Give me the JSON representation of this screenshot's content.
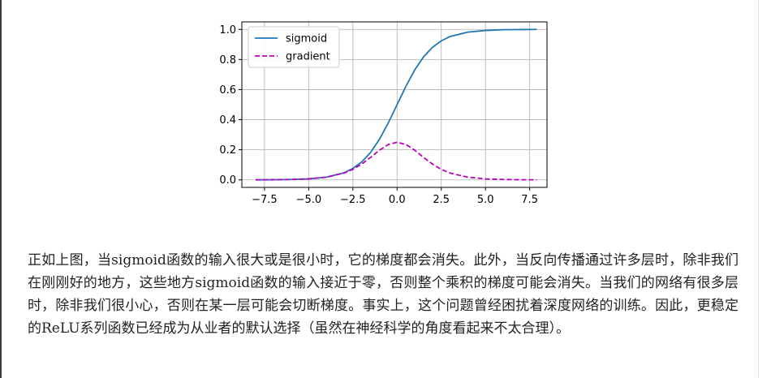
{
  "chart_data": {
    "type": "line",
    "title": "",
    "xlabel": "",
    "ylabel": "",
    "xlim": [
      -8.78,
      8.48
    ],
    "ylim": [
      -0.05,
      1.05
    ],
    "xticks": [
      -7.5,
      -5.0,
      -2.5,
      0.0,
      2.5,
      5.0,
      7.5
    ],
    "xtick_labels": [
      "−7.5",
      "−5.0",
      "−2.5",
      "0.0",
      "2.5",
      "5.0",
      "7.5"
    ],
    "yticks": [
      0.0,
      0.2,
      0.4,
      0.6,
      0.8,
      1.0
    ],
    "ytick_labels": [
      "0.0",
      "0.2",
      "0.4",
      "0.6",
      "0.8",
      "1.0"
    ],
    "grid": true,
    "legend": "top-left",
    "series": [
      {
        "name": "sigmoid",
        "style": "solid",
        "color": "#1f77b4",
        "x": [
          -8.0,
          -7.0,
          -6.0,
          -5.0,
          -4.0,
          -3.0,
          -2.5,
          -2.0,
          -1.5,
          -1.0,
          -0.5,
          0.0,
          0.5,
          1.0,
          1.5,
          2.0,
          2.5,
          3.0,
          4.0,
          5.0,
          6.0,
          7.0,
          7.9
        ],
        "y": [
          0.0003,
          0.0009,
          0.0025,
          0.0067,
          0.018,
          0.047,
          0.076,
          0.119,
          0.182,
          0.269,
          0.378,
          0.5,
          0.622,
          0.731,
          0.818,
          0.881,
          0.924,
          0.953,
          0.982,
          0.993,
          0.998,
          0.999,
          1.0
        ]
      },
      {
        "name": "gradient",
        "style": "dashed",
        "color": "#bf00bf",
        "x": [
          -8.0,
          -7.0,
          -6.0,
          -5.0,
          -4.0,
          -3.0,
          -2.5,
          -2.0,
          -1.5,
          -1.0,
          -0.5,
          0.0,
          0.5,
          1.0,
          1.5,
          2.0,
          2.5,
          3.0,
          4.0,
          5.0,
          6.0,
          7.0,
          7.9
        ],
        "y": [
          0.0003,
          0.0009,
          0.0025,
          0.0066,
          0.0177,
          0.045,
          0.07,
          0.105,
          0.149,
          0.197,
          0.235,
          0.25,
          0.235,
          0.197,
          0.149,
          0.105,
          0.07,
          0.045,
          0.0177,
          0.0066,
          0.0025,
          0.0009,
          0.0004
        ]
      }
    ]
  },
  "text": {
    "paragraph": "正如上图，当sigmoid函数的输入很大或是很小时，它的梯度都会消失。此外，当反向传播通过许多层时，除非我们在刚刚好的地方，这些地方sigmoid函数的输入接近于零，否则整个乘积的梯度可能会消失。当我们的网络有很多层时，除非我们很小心，否则在某一层可能会切断梯度。事实上，这个问题曾经困扰着深度网络的训练。因此，更稳定的ReLU系列函数已经成为从业者的默认选择（虽然在神经科学的角度看起来不太合理）。"
  }
}
